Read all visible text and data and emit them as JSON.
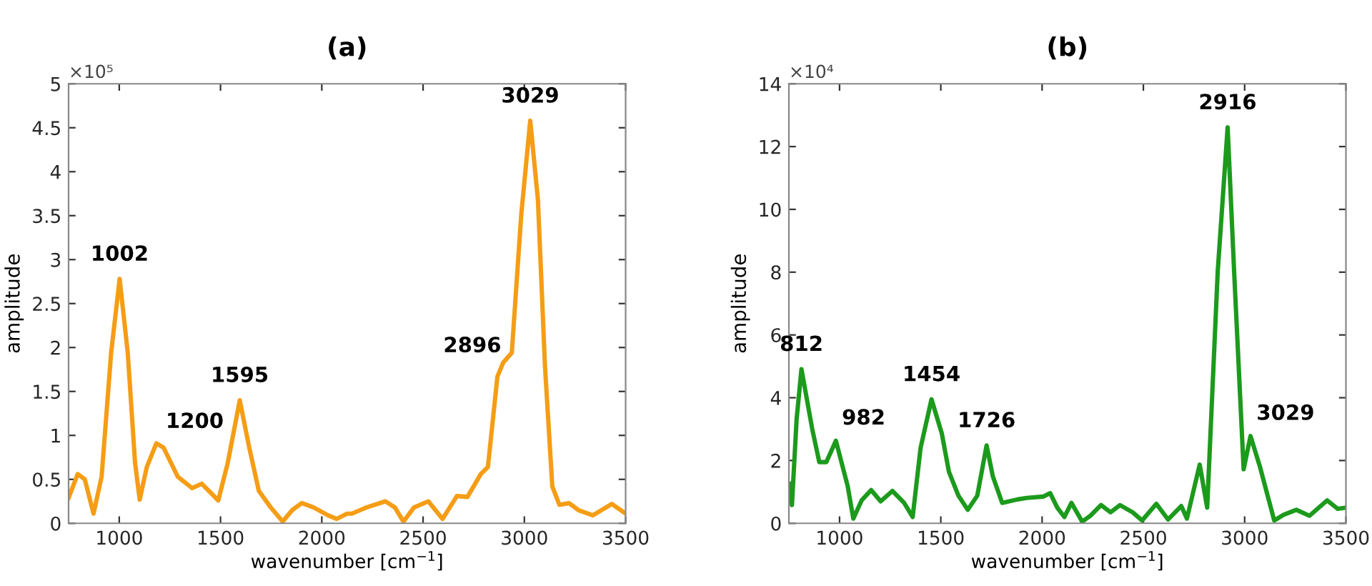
{
  "chart_data": [
    {
      "type": "line",
      "title": "(a)",
      "xlabel": "wavenumber [cm$^{−1}$]",
      "ylabel": "amplitude",
      "xlim": [
        750,
        3500
      ],
      "ylim": [
        0,
        5
      ],
      "xticks": [
        1000,
        1500,
        2000,
        2500,
        3000,
        3500
      ],
      "yticks": [
        0,
        0.5,
        1,
        1.5,
        2,
        2.5,
        3,
        3.5,
        4,
        4.5,
        5
      ],
      "grid": false,
      "legend": false,
      "marker": "none",
      "line_style": "solid",
      "series": [
        {
          "color": "#f59d15",
          "x": [
            750,
            795,
            830,
            873,
            913,
            960,
            1002,
            1042,
            1078,
            1101,
            1136,
            1183,
            1219,
            1289,
            1360,
            1407,
            1442,
            1489,
            1536,
            1595,
            1642,
            1689,
            1748,
            1807,
            1854,
            1901,
            1960,
            2031,
            2073,
            2125,
            2149,
            2220,
            2314,
            2361,
            2403,
            2455,
            2526,
            2596,
            2667,
            2719,
            2785,
            2820,
            2867,
            2896,
            2938,
            2985,
            3029,
            3067,
            3102,
            3138,
            3173,
            3220,
            3267,
            3338,
            3432,
            3500
          ],
          "values": [
            0.29,
            0.56,
            0.5,
            0.11,
            0.53,
            1.94,
            2.78,
            1.94,
            0.69,
            0.27,
            0.64,
            0.91,
            0.86,
            0.53,
            0.4,
            0.45,
            0.37,
            0.26,
            0.69,
            1.4,
            0.86,
            0.37,
            0.18,
            0.02,
            0.15,
            0.23,
            0.18,
            0.09,
            0.05,
            0.11,
            0.11,
            0.18,
            0.25,
            0.18,
            0.02,
            0.18,
            0.25,
            0.05,
            0.31,
            0.3,
            0.56,
            0.64,
            1.67,
            1.83,
            1.94,
            3.52,
            4.58,
            3.68,
            1.78,
            0.42,
            0.21,
            0.23,
            0.15,
            0.09,
            0.22,
            0.11
          ]
        }
      ],
      "annotations": [
        "×10⁵",
        {
          "text": "1002",
          "x": 1002,
          "y": 2.78
        },
        {
          "text": "1200",
          "x": 1200,
          "y": 0.9
        },
        {
          "text": "1595",
          "x": 1595,
          "y": 1.4
        },
        {
          "text": "2896",
          "x": 2896,
          "y": 1.83
        },
        {
          "text": "3029",
          "x": 3029,
          "y": 4.58
        }
      ]
    },
    {
      "type": "line",
      "title": "(b)",
      "xlabel": "wavenumber [cm$^{−1}$]",
      "ylabel": "amplitude",
      "xlim": [
        750,
        3500
      ],
      "ylim": [
        0,
        14
      ],
      "xticks": [
        1000,
        1500,
        2000,
        2500,
        3000,
        3500
      ],
      "yticks": [
        0,
        2,
        4,
        6,
        8,
        10,
        12,
        14
      ],
      "grid": false,
      "legend": false,
      "marker": "none",
      "line_style": "solid",
      "series": [
        {
          "color": "#1c9a1c",
          "x": [
            756,
            765,
            788,
            812,
            865,
            900,
            935,
            982,
            1040,
            1068,
            1109,
            1156,
            1203,
            1261,
            1319,
            1361,
            1400,
            1454,
            1505,
            1540,
            1587,
            1633,
            1680,
            1726,
            1757,
            1803,
            1878,
            1924,
            2005,
            2040,
            2075,
            2110,
            2145,
            2198,
            2238,
            2291,
            2338,
            2385,
            2447,
            2494,
            2564,
            2622,
            2687,
            2715,
            2778,
            2815,
            2867,
            2916,
            2948,
            2995,
            3029,
            3076,
            3146,
            3192,
            3255,
            3320,
            3407,
            3460,
            3500
          ],
          "values": [
            1.26,
            0.58,
            3.31,
            4.91,
            3.01,
            1.95,
            1.95,
            2.63,
            1.19,
            0.15,
            0.73,
            1.06,
            0.7,
            1.03,
            0.65,
            0.2,
            2.4,
            3.95,
            2.86,
            1.64,
            0.88,
            0.43,
            0.88,
            2.48,
            1.49,
            0.65,
            0.76,
            0.81,
            0.85,
            0.96,
            0.5,
            0.2,
            0.65,
            0.05,
            0.24,
            0.58,
            0.35,
            0.58,
            0.35,
            0.09,
            0.62,
            0.12,
            0.55,
            0.15,
            1.87,
            0.5,
            8.02,
            12.61,
            8.02,
            1.72,
            2.78,
            1.79,
            0.09,
            0.27,
            0.43,
            0.24,
            0.73,
            0.46,
            0.5
          ]
        }
      ],
      "annotations": [
        "×10⁴",
        {
          "text": "812",
          "x": 812,
          "y": 4.91
        },
        {
          "text": "982",
          "x": 982,
          "y": 2.63
        },
        {
          "text": "1454",
          "x": 1454,
          "y": 3.95
        },
        {
          "text": "1726",
          "x": 1726,
          "y": 2.48
        },
        {
          "text": "2916",
          "x": 2916,
          "y": 12.61
        },
        {
          "text": "3029",
          "x": 3029,
          "y": 2.78
        }
      ]
    }
  ]
}
